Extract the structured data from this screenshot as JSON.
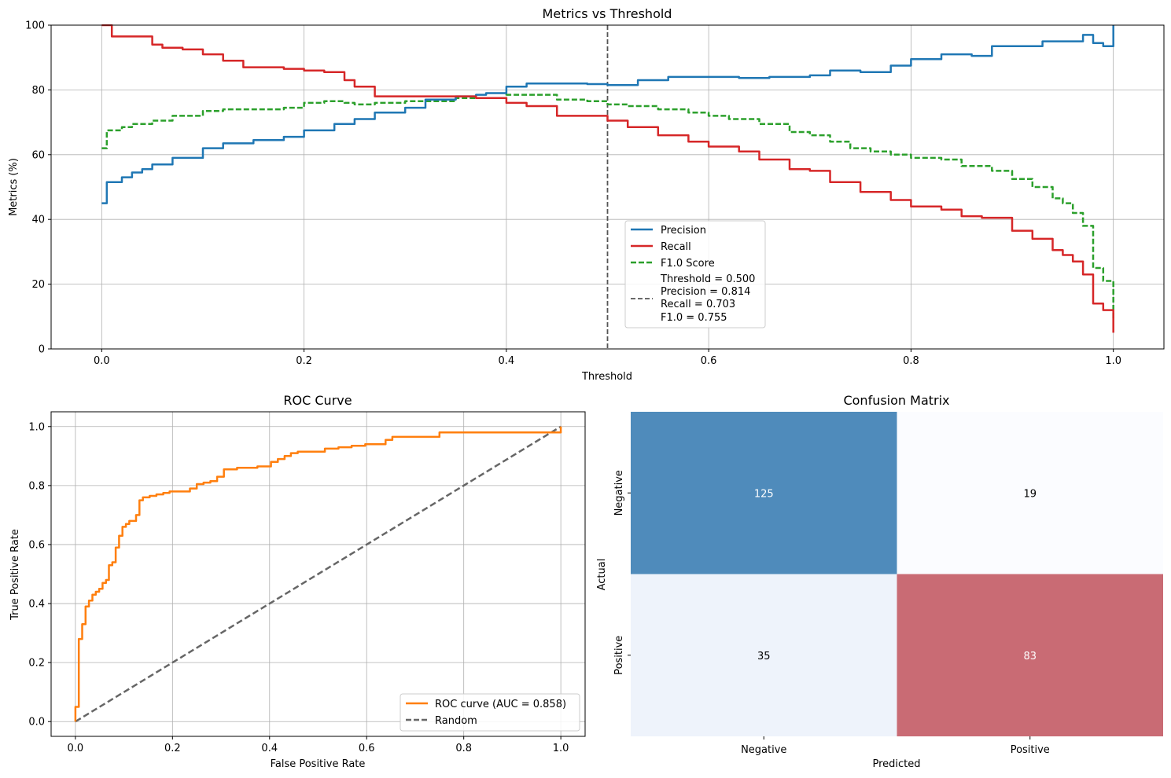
{
  "chart_data": [
    {
      "type": "line",
      "title": "Metrics vs Threshold",
      "xlabel": "Threshold",
      "ylabel": "Metrics (%)",
      "xlim": [
        -0.05,
        1.05
      ],
      "ylim": [
        0,
        100
      ],
      "xticks": [
        0.0,
        0.2,
        0.4,
        0.6,
        0.8,
        1.0
      ],
      "xtick_labels": [
        "0.0",
        "0.2",
        "0.4",
        "0.6",
        "0.8",
        "1.0"
      ],
      "yticks": [
        0,
        20,
        40,
        60,
        80,
        100
      ],
      "ytick_labels": [
        "0",
        "20",
        "40",
        "60",
        "80",
        "100"
      ],
      "grid": true,
      "legend_position": "lower-center",
      "colors": {
        "precision": "#1f77b4",
        "recall": "#d62728",
        "f1": "#2ca02c",
        "threshold": "#555555"
      },
      "threshold_line": {
        "x": 0.5,
        "legend_lines": [
          "Threshold = 0.500",
          "Precision = 0.814",
          "Recall = 0.703",
          "F1.0 = 0.755"
        ]
      },
      "series": [
        {
          "name": "Precision",
          "x": [
            0.0,
            0.005,
            0.02,
            0.03,
            0.04,
            0.05,
            0.07,
            0.1,
            0.12,
            0.15,
            0.18,
            0.2,
            0.23,
            0.25,
            0.27,
            0.3,
            0.32,
            0.35,
            0.37,
            0.38,
            0.4,
            0.42,
            0.45,
            0.48,
            0.5,
            0.53,
            0.56,
            0.6,
            0.63,
            0.66,
            0.7,
            0.72,
            0.75,
            0.78,
            0.8,
            0.83,
            0.86,
            0.88,
            0.91,
            0.93,
            0.95,
            0.97,
            0.98,
            0.99,
            1.0
          ],
          "values": [
            45,
            51.5,
            53,
            54.5,
            55.5,
            57,
            59,
            62,
            63.5,
            64.5,
            65.5,
            67.5,
            69.5,
            71,
            73,
            74.5,
            77,
            78,
            78.5,
            79,
            81,
            82,
            82,
            81.8,
            81.5,
            83,
            84,
            84,
            83.7,
            84,
            84.5,
            86,
            85.5,
            87.5,
            89.5,
            91,
            90.5,
            93.5,
            93.5,
            95,
            95,
            97,
            94.5,
            93.5,
            100
          ]
        },
        {
          "name": "Recall",
          "x": [
            0.0,
            0.01,
            0.03,
            0.04,
            0.05,
            0.06,
            0.08,
            0.1,
            0.12,
            0.14,
            0.18,
            0.2,
            0.22,
            0.24,
            0.25,
            0.27,
            0.3,
            0.35,
            0.37,
            0.4,
            0.42,
            0.45,
            0.48,
            0.5,
            0.52,
            0.55,
            0.58,
            0.6,
            0.63,
            0.65,
            0.68,
            0.7,
            0.72,
            0.75,
            0.78,
            0.8,
            0.83,
            0.85,
            0.87,
            0.9,
            0.92,
            0.94,
            0.95,
            0.96,
            0.97,
            0.98,
            0.99,
            1.0
          ],
          "values": [
            100,
            96.5,
            96.5,
            96.5,
            94,
            93,
            92.5,
            91,
            89,
            87,
            86.5,
            86,
            85.5,
            83,
            81,
            78,
            78,
            78,
            77.5,
            76,
            75,
            72,
            72,
            70.5,
            68.5,
            66,
            64,
            62.5,
            61,
            58.5,
            55.5,
            55,
            51.5,
            48.5,
            46,
            44,
            43,
            41,
            40.5,
            36.5,
            34,
            30.5,
            29,
            27,
            23,
            14,
            12,
            5
          ]
        },
        {
          "name": "F1.0 Score",
          "x": [
            0.0,
            0.005,
            0.02,
            0.03,
            0.05,
            0.07,
            0.1,
            0.12,
            0.15,
            0.18,
            0.2,
            0.22,
            0.24,
            0.25,
            0.27,
            0.3,
            0.35,
            0.38,
            0.4,
            0.42,
            0.45,
            0.48,
            0.5,
            0.52,
            0.55,
            0.58,
            0.6,
            0.62,
            0.65,
            0.68,
            0.7,
            0.72,
            0.74,
            0.76,
            0.78,
            0.8,
            0.83,
            0.85,
            0.88,
            0.9,
            0.92,
            0.94,
            0.95,
            0.96,
            0.97,
            0.98,
            0.99,
            1.0
          ],
          "values": [
            62,
            67.5,
            68.5,
            69.5,
            70.5,
            72,
            73.5,
            74,
            74,
            74.5,
            76,
            76.5,
            76,
            75.5,
            76,
            76.5,
            77.5,
            77.5,
            78.5,
            78.5,
            77,
            76.5,
            75.5,
            75,
            74,
            73,
            72,
            71,
            69.5,
            67,
            66,
            64,
            62,
            61,
            60,
            59,
            58.5,
            56.5,
            55,
            52.5,
            50,
            46.5,
            45,
            42,
            38,
            25,
            21,
            9
          ]
        }
      ]
    },
    {
      "type": "line",
      "title": "ROC Curve",
      "xlabel": "False Positive Rate",
      "ylabel": "True Positive Rate",
      "xlim": [
        -0.05,
        1.05
      ],
      "ylim": [
        -0.05,
        1.05
      ],
      "xticks": [
        0.0,
        0.2,
        0.4,
        0.6,
        0.8,
        1.0
      ],
      "xtick_labels": [
        "0.0",
        "0.2",
        "0.4",
        "0.6",
        "0.8",
        "1.0"
      ],
      "yticks": [
        0.0,
        0.2,
        0.4,
        0.6,
        0.8,
        1.0
      ],
      "ytick_labels": [
        "0.0",
        "0.2",
        "0.4",
        "0.6",
        "0.8",
        "1.0"
      ],
      "grid": true,
      "legend_position": "lower-right",
      "colors": {
        "roc": "#ff7f0e",
        "random": "#666666"
      },
      "series": [
        {
          "name": "ROC curve (AUC = 0.858)",
          "x": [
            0.0,
            0.0,
            0.007,
            0.007,
            0.014,
            0.021,
            0.028,
            0.035,
            0.042,
            0.049,
            0.056,
            0.063,
            0.069,
            0.076,
            0.083,
            0.09,
            0.097,
            0.104,
            0.111,
            0.125,
            0.132,
            0.139,
            0.153,
            0.167,
            0.181,
            0.194,
            0.236,
            0.25,
            0.264,
            0.278,
            0.292,
            0.306,
            0.333,
            0.375,
            0.403,
            0.417,
            0.431,
            0.444,
            0.458,
            0.486,
            0.514,
            0.542,
            0.569,
            0.597,
            0.625,
            0.639,
            0.653,
            0.694,
            0.736,
            0.75,
            1.0
          ],
          "values": [
            0.0,
            0.05,
            0.07,
            0.28,
            0.33,
            0.39,
            0.41,
            0.43,
            0.44,
            0.45,
            0.47,
            0.48,
            0.53,
            0.54,
            0.59,
            0.63,
            0.66,
            0.67,
            0.68,
            0.7,
            0.75,
            0.76,
            0.765,
            0.77,
            0.775,
            0.78,
            0.79,
            0.805,
            0.81,
            0.815,
            0.83,
            0.855,
            0.86,
            0.865,
            0.88,
            0.89,
            0.9,
            0.91,
            0.915,
            0.915,
            0.925,
            0.93,
            0.935,
            0.94,
            0.94,
            0.955,
            0.965,
            0.965,
            0.965,
            0.98,
            1.0
          ]
        },
        {
          "name": "Random",
          "x": [
            0.0,
            1.0
          ],
          "values": [
            0.0,
            1.0
          ]
        }
      ]
    },
    {
      "type": "heatmap",
      "title": "Confusion Matrix",
      "xlabel": "Predicted",
      "ylabel": "Actual",
      "x_categories": [
        "Negative",
        "Positive"
      ],
      "y_categories": [
        "Negative",
        "Positive"
      ],
      "values": [
        [
          125,
          19
        ],
        [
          35,
          83
        ]
      ],
      "value_labels": [
        [
          "125",
          "19"
        ],
        [
          "35",
          "83"
        ]
      ],
      "cell_colors": [
        [
          "#4f8bbb",
          "#fbfcff"
        ],
        [
          "#eef3fb",
          "#c96b74"
        ]
      ],
      "text_colors": [
        [
          "#ffffff",
          "#000000"
        ],
        [
          "#000000",
          "#ffffff"
        ]
      ]
    }
  ]
}
